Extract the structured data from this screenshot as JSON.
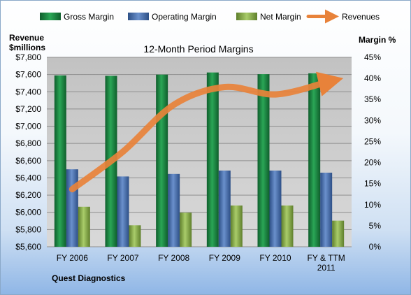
{
  "chart_data": {
    "type": "bar",
    "title": "12-Month Period Margins",
    "left_axis_label_line1": "Revenue",
    "left_axis_label_line2": "$millions",
    "right_axis_label": "Margin %",
    "company": "Quest Diagnostics",
    "categories": [
      [
        "FY 2006"
      ],
      [
        "FY 2007"
      ],
      [
        "FY 2008"
      ],
      [
        "FY 2009"
      ],
      [
        "FY 2010"
      ],
      [
        "FY & TTM",
        "2011"
      ]
    ],
    "left_axis": {
      "min": 5600,
      "max": 7800,
      "step": 200,
      "tick_labels": [
        "$5,600",
        "$5,800",
        "$6,000",
        "$6,200",
        "$6,400",
        "$6,600",
        "$6,800",
        "$7,000",
        "$7,200",
        "$7,400",
        "$7,600",
        "$7,800"
      ]
    },
    "right_axis": {
      "min": 0,
      "max": 45,
      "step": 5,
      "tick_labels": [
        "0%",
        "5%",
        "10%",
        "15%",
        "20%",
        "25%",
        "30%",
        "35%",
        "40%",
        "45%"
      ]
    },
    "series": [
      {
        "name": "Gross Margin",
        "axis": "right",
        "kind": "bar",
        "color": "#1e8a45",
        "values": [
          40.7,
          40.6,
          40.9,
          41.4,
          41.0,
          41.2
        ]
      },
      {
        "name": "Operating Margin",
        "axis": "right",
        "kind": "bar",
        "color": "#4a72b0",
        "values": [
          18.4,
          16.7,
          17.3,
          18.1,
          18.1,
          17.6
        ]
      },
      {
        "name": "Net Margin",
        "axis": "right",
        "kind": "bar",
        "color": "#8db050",
        "values": [
          9.5,
          5.1,
          8.1,
          9.8,
          9.8,
          6.2
        ]
      },
      {
        "name": "Revenues",
        "axis": "left",
        "kind": "line",
        "color": "#e8823a",
        "values": [
          6268,
          6705,
          7249,
          7455,
          7369,
          7510
        ]
      }
    ],
    "legend": {
      "position": "top"
    },
    "grid": true,
    "plot_background": "#c8c8c8"
  }
}
